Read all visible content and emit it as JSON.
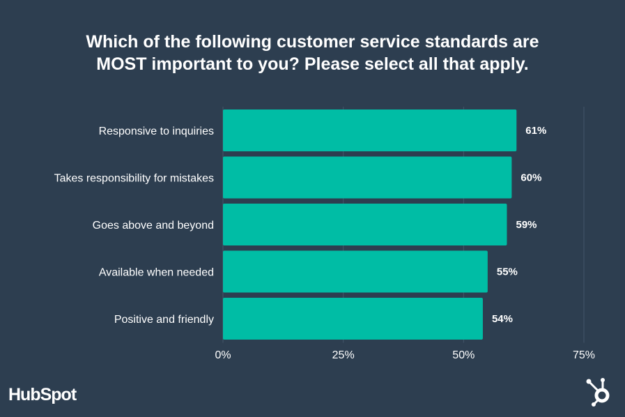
{
  "chart_data": {
    "type": "bar",
    "orientation": "horizontal",
    "title": "Which of the following customer service standards are MOST important to you? Please select all that apply.",
    "title_lines": [
      "Which of the following customer service standards are",
      "MOST important to you? Please select all that apply."
    ],
    "categories": [
      "Responsive to inquiries",
      "Takes responsibility for mistakes",
      "Goes above and beyond",
      "Available when needed",
      "Positive and friendly"
    ],
    "values": [
      61,
      60,
      59,
      55,
      54
    ],
    "value_labels": [
      "61%",
      "60%",
      "59%",
      "55%",
      "54%"
    ],
    "xlim": [
      0,
      75
    ],
    "xticks": [
      0,
      25,
      50,
      75
    ],
    "xtick_labels": [
      "0%",
      "25%",
      "50%",
      "75%"
    ],
    "xlabel": "",
    "ylabel": "",
    "grid": true,
    "bar_color": "#00bda5",
    "background": "#2d3e50"
  },
  "branding": {
    "logo_text": "HubSpot"
  }
}
